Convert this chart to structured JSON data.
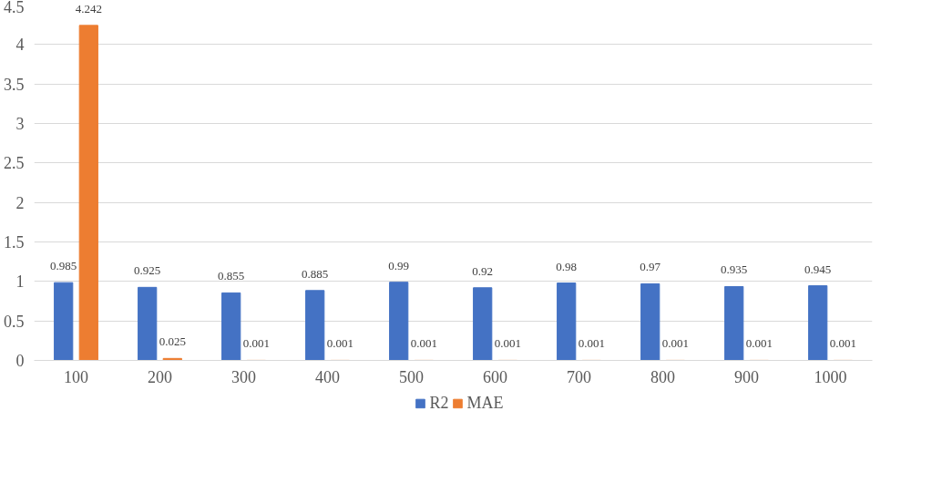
{
  "chart_data": {
    "type": "bar",
    "categories": [
      "100",
      "200",
      "300",
      "400",
      "500",
      "600",
      "700",
      "800",
      "900",
      "1000"
    ],
    "series": [
      {
        "name": "R2",
        "color": "#4472c4",
        "values": [
          0.985,
          0.925,
          0.855,
          0.885,
          0.99,
          0.92,
          0.98,
          0.97,
          0.935,
          0.945
        ]
      },
      {
        "name": "MAE",
        "color": "#ed7d31",
        "values": [
          4.242,
          0.025,
          0.001,
          0.001,
          0.001,
          0.001,
          0.001,
          0.001,
          0.001,
          0.001
        ]
      }
    ],
    "ylim": [
      0,
      4.5
    ],
    "yticks": [
      0,
      0.5,
      1,
      1.5,
      2,
      2.5,
      3,
      3.5,
      4,
      4.5
    ],
    "grid": "y",
    "legend": "bottom",
    "data_labels": true
  }
}
